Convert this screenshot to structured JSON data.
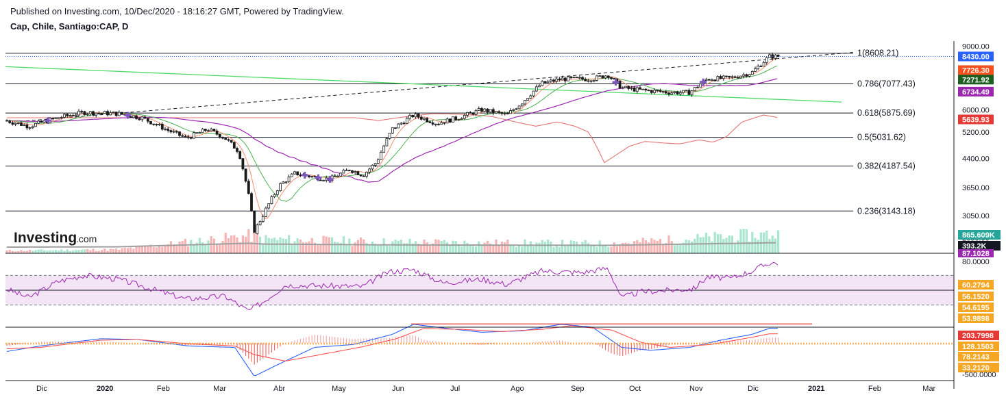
{
  "header": {
    "published": "Published on Investing.com, 10/Dec/2020 - 18:16:27 GMT, Powered by TradingView.",
    "symbol": "Cap, Chile, Santiago:CAP, D"
  },
  "logo": {
    "main": "Investing",
    "suffix": ".com"
  },
  "colors": {
    "up": "#26a69a",
    "down": "#ef5350",
    "ema_short": "#f28b6b",
    "ema_medium": "#4caf50",
    "ma_long": "#9c27b0",
    "ma_200": "#e57373",
    "trendline_green": "#4cd964",
    "rsi": "#9c27b0",
    "macd": "#2962ff",
    "signal": "#ff5252",
    "bg_rsi": "#f3e5f5"
  },
  "price_axis": {
    "ticks": [
      "9000.00",
      "8430.00",
      "7726.30",
      "7271.92",
      "6734.49",
      "6000.00",
      "5639.93",
      "5200.00",
      "4400.00",
      "3650.00",
      "3050.00",
      "2650.00"
    ]
  },
  "price_tags": [
    {
      "label": "8430.00",
      "value": 8430,
      "color": "#2962ff"
    },
    {
      "label": "7726.30",
      "value": 7726.3,
      "color": "#f4511e"
    },
    {
      "label": "7271.92",
      "value": 7271.92,
      "color": "#1b5e20"
    },
    {
      "label": "6734.49",
      "value": 6734.49,
      "color": "#9c27b0"
    },
    {
      "label": "5639.93",
      "value": 5639.93,
      "color": "#e53935"
    }
  ],
  "fibonacci": [
    {
      "label": "1(8608.21)",
      "value": 8608.21
    },
    {
      "label": "0.786(7077.43)",
      "value": 7077.43
    },
    {
      "label": "0.618(5875.69)",
      "value": 5875.69
    },
    {
      "label": "0.5(5031.62)",
      "value": 5031.62
    },
    {
      "label": "0.382(4187.54)",
      "value": 4187.54
    },
    {
      "label": "0.236(3143.18)",
      "value": 3143.18
    }
  ],
  "volume_tags": [
    {
      "label": "865.609K",
      "color": "#26a69a"
    },
    {
      "label": "393.2K",
      "color": "#131722"
    }
  ],
  "rsi_axis": {
    "ticks": [
      "80.0000",
      "60.2794",
      "56.1520",
      "54.6195",
      "53.9898"
    ],
    "top_tag": "87.1028"
  },
  "macd_axis": {
    "ticks": [
      "203.7998",
      "128.1503",
      "78.2143",
      "33.2120",
      "-500.0000"
    ]
  },
  "x_axis": {
    "labels": [
      "Dic",
      "2020",
      "Feb",
      "Mar",
      "Abr",
      "May",
      "Jun",
      "Jul",
      "Ago",
      "Sep",
      "Oct",
      "Nov",
      "Dic",
      "2021",
      "Feb",
      "Mar"
    ]
  },
  "chart_data": {
    "type": "candlestick",
    "title": "Cap, Chile, Santiago:CAP, D",
    "x_start": "2019-11-13",
    "x_end": "2021-03-15",
    "ylim": [
      2400,
      9300
    ],
    "price_path": [
      [
        "2019-11-13",
        5600
      ],
      [
        "2019-11-25",
        5400
      ],
      [
        "2019-12-10",
        5700
      ],
      [
        "2019-12-23",
        5900
      ],
      [
        "2020-01-10",
        5850
      ],
      [
        "2020-01-22",
        5700
      ],
      [
        "2020-02-05",
        5250
      ],
      [
        "2020-02-14",
        5000
      ],
      [
        "2020-02-25",
        5300
      ],
      [
        "2020-03-05",
        5000
      ],
      [
        "2020-03-12",
        4600
      ],
      [
        "2020-03-17",
        3500
      ],
      [
        "2020-03-20",
        2750
      ],
      [
        "2020-03-25",
        3100
      ],
      [
        "2020-04-02",
        3700
      ],
      [
        "2020-04-10",
        4000
      ],
      [
        "2020-04-20",
        3900
      ],
      [
        "2020-04-28",
        3850
      ],
      [
        "2020-05-08",
        4100
      ],
      [
        "2020-05-15",
        3950
      ],
      [
        "2020-05-22",
        4300
      ],
      [
        "2020-05-30",
        5300
      ],
      [
        "2020-06-10",
        5800
      ],
      [
        "2020-06-22",
        5500
      ],
      [
        "2020-07-03",
        5700
      ],
      [
        "2020-07-15",
        6000
      ],
      [
        "2020-07-28",
        5800
      ],
      [
        "2020-08-05",
        6300
      ],
      [
        "2020-08-15",
        7100
      ],
      [
        "2020-08-25",
        7300
      ],
      [
        "2020-09-10",
        7300
      ],
      [
        "2020-09-18",
        7500
      ],
      [
        "2020-09-25",
        6900
      ],
      [
        "2020-10-05",
        6800
      ],
      [
        "2020-10-20",
        6700
      ],
      [
        "2020-10-30",
        6700
      ],
      [
        "2020-11-08",
        7300
      ],
      [
        "2020-11-20",
        7350
      ],
      [
        "2020-12-01",
        7600
      ],
      [
        "2020-12-10",
        8430
      ]
    ],
    "volume_avg": 393200,
    "volume_last": 865609,
    "rsi_last": 87.1028,
    "macd_last": 203.7998,
    "signal_last": 128.1503,
    "volume_path": [
      [
        "2019-11-13",
        0.08
      ],
      [
        "2020-01-10",
        0.12
      ],
      [
        "2020-03-17",
        0.55
      ],
      [
        "2020-03-25",
        0.45
      ],
      [
        "2020-05-30",
        0.35
      ],
      [
        "2020-09-18",
        0.3
      ],
      [
        "2020-12-10",
        0.6
      ]
    ],
    "rsi_path": [
      [
        "2019-11-13",
        52
      ],
      [
        "2019-11-25",
        40
      ],
      [
        "2019-12-10",
        62
      ],
      [
        "2019-12-23",
        70
      ],
      [
        "2020-01-10",
        65
      ],
      [
        "2020-02-05",
        45
      ],
      [
        "2020-02-14",
        38
      ],
      [
        "2020-03-05",
        42
      ],
      [
        "2020-03-17",
        22
      ],
      [
        "2020-03-25",
        35
      ],
      [
        "2020-04-05",
        57
      ],
      [
        "2020-04-25",
        56
      ],
      [
        "2020-05-15",
        55
      ],
      [
        "2020-05-28",
        75
      ],
      [
        "2020-06-10",
        78
      ],
      [
        "2020-06-25",
        60
      ],
      [
        "2020-07-15",
        65
      ],
      [
        "2020-07-28",
        58
      ],
      [
        "2020-08-15",
        76
      ],
      [
        "2020-09-05",
        74
      ],
      [
        "2020-09-18",
        80
      ],
      [
        "2020-09-25",
        40
      ],
      [
        "2020-10-05",
        48
      ],
      [
        "2020-10-20",
        50
      ],
      [
        "2020-11-01",
        52
      ],
      [
        "2020-11-08",
        68
      ],
      [
        "2020-11-20",
        66
      ],
      [
        "2020-12-01",
        76
      ],
      [
        "2020-12-10",
        87
      ]
    ],
    "macd_path": [
      [
        "2019-11-13",
        -120
      ],
      [
        "2019-12-01",
        -40
      ],
      [
        "2020-01-01",
        60
      ],
      [
        "2020-01-20",
        50
      ],
      [
        "2020-02-15",
        -40
      ],
      [
        "2020-03-10",
        -60
      ],
      [
        "2020-03-20",
        -460
      ],
      [
        "2020-04-01",
        -300
      ],
      [
        "2020-04-20",
        -60
      ],
      [
        "2020-05-10",
        -20
      ],
      [
        "2020-05-30",
        120
      ],
      [
        "2020-06-10",
        260
      ],
      [
        "2020-06-25",
        210
      ],
      [
        "2020-07-15",
        150
      ],
      [
        "2020-08-05",
        170
      ],
      [
        "2020-08-25",
        260
      ],
      [
        "2020-09-10",
        220
      ],
      [
        "2020-09-25",
        -60
      ],
      [
        "2020-10-10",
        -100
      ],
      [
        "2020-10-30",
        -60
      ],
      [
        "2020-11-15",
        40
      ],
      [
        "2020-12-01",
        120
      ],
      [
        "2020-12-10",
        203.8
      ]
    ],
    "signal_path": [
      [
        "2019-11-13",
        -80
      ],
      [
        "2019-12-01",
        -60
      ],
      [
        "2020-01-01",
        40
      ],
      [
        "2020-01-20",
        50
      ],
      [
        "2020-02-15",
        -10
      ],
      [
        "2020-03-10",
        -40
      ],
      [
        "2020-03-20",
        -160
      ],
      [
        "2020-04-05",
        -250
      ],
      [
        "2020-04-25",
        -150
      ],
      [
        "2020-05-15",
        -50
      ],
      [
        "2020-06-01",
        60
      ],
      [
        "2020-06-15",
        200
      ],
      [
        "2020-07-05",
        190
      ],
      [
        "2020-07-25",
        160
      ],
      [
        "2020-08-15",
        190
      ],
      [
        "2020-08-30",
        240
      ],
      [
        "2020-09-20",
        180
      ],
      [
        "2020-10-05",
        10
      ],
      [
        "2020-10-20",
        -60
      ],
      [
        "2020-11-10",
        -20
      ],
      [
        "2020-12-01",
        80
      ],
      [
        "2020-12-10",
        128.15
      ]
    ]
  }
}
